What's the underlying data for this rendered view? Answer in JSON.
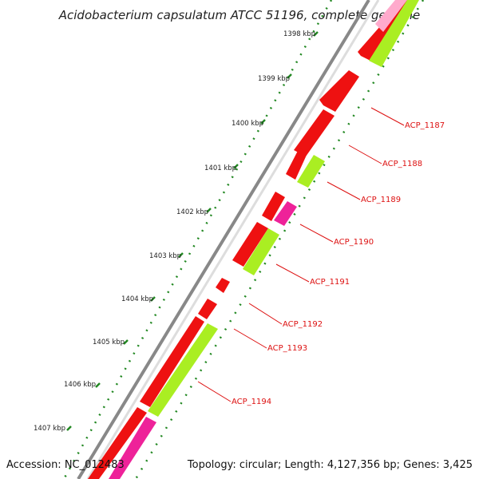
{
  "title": "Acidobacterium capsulatum ATCC 51196, complete genome",
  "accession": "Accession: NC_012483",
  "stats": "Topology: circular; Length: 4,127,356 bp; Genes: 3,425",
  "ticks": [
    "1398 kbp",
    "1399 kbp",
    "1400 kbp",
    "1401 kbp",
    "1402 kbp",
    "1403 kbp",
    "1404 kbp",
    "1405 kbp",
    "1406 kbp",
    "1407 kbp"
  ],
  "genes": [
    "ACP_1187",
    "ACP_1188",
    "ACP_1189",
    "ACP_1190",
    "ACP_1191",
    "ACP_1192",
    "ACP_1193",
    "ACP_1194"
  ],
  "colors": {
    "cds": "#ee1111",
    "trna": "#aaee22",
    "rrna": "#ee2299",
    "backbone": "#888888",
    "tick": "#228822",
    "label": "#dd1111"
  }
}
